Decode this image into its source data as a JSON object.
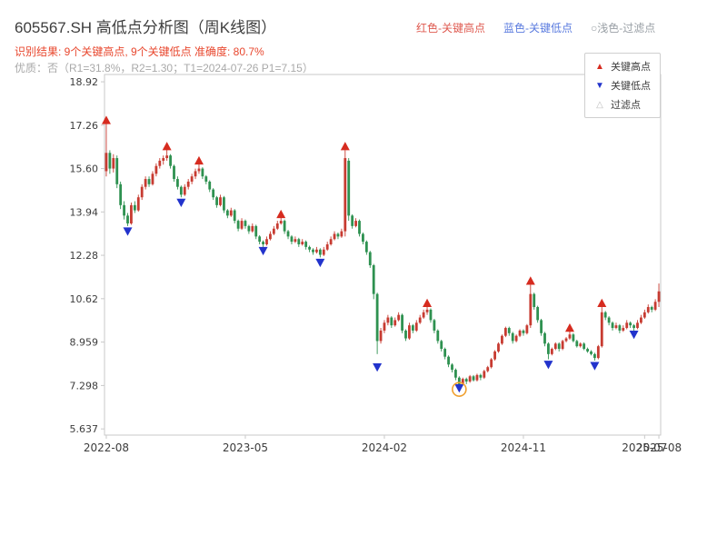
{
  "header": {
    "title": "605567.SH 高低点分析图（周K线图）",
    "legend_top": [
      {
        "label": "红色-关键高点",
        "color": "#df5a50"
      },
      {
        "label": "蓝色-关键低点",
        "color": "#5a7bdf"
      },
      {
        "label": "○浅色-过滤点",
        "color": "#9aa0a6"
      }
    ],
    "result_line": "识别结果: 9个关键高点, 9个关键低点  准确度: 80.7%",
    "result_color": "#e8472e",
    "quality_line": "优质：否（R1=31.8%，R2=1.30；T1=2024-07-26 P1=7.15）"
  },
  "chart_legend": {
    "items": [
      {
        "symbol": "▲",
        "label": "关键高点",
        "color": "#d62b1f"
      },
      {
        "symbol": "▼",
        "label": "关键低点",
        "color": "#2233cc"
      },
      {
        "symbol": "△",
        "label": "过滤点",
        "color": "#bdbdbd"
      }
    ]
  },
  "chart_data": {
    "type": "candlestick",
    "ticker": "605567.SH",
    "period": "weekly",
    "title": "605567.SH 高低点分析图（周K线图）",
    "ylim": [
      5.4,
      19.2
    ],
    "y_ticks": [
      {
        "value": 18.92,
        "label": "18.92"
      },
      {
        "value": 17.26,
        "label": "17.26"
      },
      {
        "value": 15.6,
        "label": "15.60"
      },
      {
        "value": 13.94,
        "label": "13.94"
      },
      {
        "value": 12.28,
        "label": "12.28"
      },
      {
        "value": 10.62,
        "label": "10.62"
      },
      {
        "value": 8.959,
        "label": "8.959"
      },
      {
        "value": 7.298,
        "label": "7.298"
      },
      {
        "value": 5.637,
        "label": "5.637"
      }
    ],
    "x_ticks": [
      {
        "week": 0,
        "label": "2022-08"
      },
      {
        "week": 39,
        "label": "2023-05"
      },
      {
        "week": 78,
        "label": "2024-02"
      },
      {
        "week": 117,
        "label": "2024-11"
      },
      {
        "week": 151,
        "label": "2025-07"
      },
      {
        "week": 155,
        "label": "2025-08"
      }
    ],
    "candles": [
      [
        15.5,
        17.45,
        15.3,
        16.2
      ],
      [
        16.2,
        16.3,
        15.4,
        15.6
      ],
      [
        15.6,
        16.15,
        15.45,
        16.0
      ],
      [
        16.0,
        16.1,
        14.85,
        15.0
      ],
      [
        15.0,
        15.1,
        14.05,
        14.2
      ],
      [
        14.2,
        14.35,
        13.65,
        13.8
      ],
      [
        13.8,
        13.9,
        13.4,
        13.5
      ],
      [
        13.5,
        14.3,
        13.45,
        14.2
      ],
      [
        14.2,
        14.35,
        13.9,
        14.0
      ],
      [
        14.0,
        14.6,
        13.95,
        14.5
      ],
      [
        14.5,
        15.0,
        14.4,
        14.9
      ],
      [
        14.9,
        15.3,
        14.8,
        15.2
      ],
      [
        15.2,
        15.3,
        14.9,
        15.0
      ],
      [
        15.0,
        15.5,
        14.95,
        15.4
      ],
      [
        15.4,
        15.8,
        15.3,
        15.7
      ],
      [
        15.7,
        16.0,
        15.6,
        15.9
      ],
      [
        15.9,
        16.1,
        15.75,
        16.0
      ],
      [
        16.0,
        16.35,
        15.9,
        16.1
      ],
      [
        16.1,
        16.15,
        15.6,
        15.7
      ],
      [
        15.7,
        15.75,
        15.1,
        15.2
      ],
      [
        15.2,
        15.3,
        14.8,
        14.9
      ],
      [
        14.9,
        14.95,
        14.5,
        14.6
      ],
      [
        14.6,
        15.0,
        14.55,
        14.9
      ],
      [
        14.9,
        15.2,
        14.8,
        15.1
      ],
      [
        15.1,
        15.4,
        15.0,
        15.3
      ],
      [
        15.3,
        15.6,
        15.2,
        15.5
      ],
      [
        15.5,
        15.8,
        15.4,
        15.6
      ],
      [
        15.6,
        15.65,
        15.2,
        15.3
      ],
      [
        15.3,
        15.35,
        15.0,
        15.1
      ],
      [
        15.1,
        15.15,
        14.7,
        14.8
      ],
      [
        14.8,
        14.85,
        14.4,
        14.5
      ],
      [
        14.5,
        14.55,
        14.1,
        14.2
      ],
      [
        14.2,
        14.6,
        14.15,
        14.5
      ],
      [
        14.5,
        14.55,
        13.9,
        14.0
      ],
      [
        14.0,
        14.05,
        13.7,
        13.8
      ],
      [
        13.8,
        14.1,
        13.75,
        14.0
      ],
      [
        14.0,
        14.05,
        13.5,
        13.6
      ],
      [
        13.6,
        13.65,
        13.2,
        13.3
      ],
      [
        13.3,
        13.7,
        13.25,
        13.6
      ],
      [
        13.6,
        13.65,
        13.3,
        13.4
      ],
      [
        13.4,
        13.45,
        13.1,
        13.2
      ],
      [
        13.2,
        13.5,
        13.15,
        13.4
      ],
      [
        13.4,
        13.45,
        12.9,
        13.0
      ],
      [
        13.0,
        13.05,
        12.7,
        12.8
      ],
      [
        12.8,
        12.85,
        12.6,
        12.7
      ],
      [
        12.7,
        13.0,
        12.65,
        12.9
      ],
      [
        12.9,
        13.2,
        12.85,
        13.1
      ],
      [
        13.1,
        13.4,
        13.05,
        13.3
      ],
      [
        13.3,
        13.6,
        13.25,
        13.5
      ],
      [
        13.5,
        13.75,
        13.45,
        13.6
      ],
      [
        13.6,
        13.65,
        13.1,
        13.2
      ],
      [
        13.2,
        13.25,
        12.9,
        13.0
      ],
      [
        13.0,
        13.05,
        12.7,
        12.8
      ],
      [
        12.8,
        13.0,
        12.75,
        12.9
      ],
      [
        12.9,
        12.95,
        12.6,
        12.7
      ],
      [
        12.7,
        12.9,
        12.65,
        12.8
      ],
      [
        12.8,
        12.85,
        12.5,
        12.6
      ],
      [
        12.6,
        12.65,
        12.4,
        12.5
      ],
      [
        12.5,
        12.55,
        12.3,
        12.4
      ],
      [
        12.4,
        12.6,
        12.35,
        12.5
      ],
      [
        12.5,
        12.55,
        12.2,
        12.3
      ],
      [
        12.3,
        12.6,
        12.25,
        12.5
      ],
      [
        12.5,
        12.8,
        12.45,
        12.7
      ],
      [
        12.7,
        13.0,
        12.65,
        12.9
      ],
      [
        12.9,
        13.2,
        12.85,
        13.1
      ],
      [
        13.1,
        13.15,
        12.9,
        13.0
      ],
      [
        13.0,
        13.3,
        12.95,
        13.2
      ],
      [
        13.2,
        16.3,
        13.0,
        16.0
      ],
      [
        15.9,
        16.0,
        13.6,
        13.8
      ],
      [
        13.8,
        13.85,
        13.3,
        13.4
      ],
      [
        13.4,
        13.7,
        13.35,
        13.6
      ],
      [
        13.6,
        13.65,
        13.0,
        13.1
      ],
      [
        13.1,
        13.15,
        12.7,
        12.8
      ],
      [
        12.8,
        12.85,
        12.3,
        12.4
      ],
      [
        12.4,
        12.45,
        11.8,
        11.9
      ],
      [
        11.9,
        11.95,
        10.6,
        10.8
      ],
      [
        10.8,
        10.85,
        8.5,
        9.0
      ],
      [
        9.0,
        9.5,
        8.9,
        9.4
      ],
      [
        9.4,
        9.8,
        9.3,
        9.7
      ],
      [
        9.7,
        10.0,
        9.6,
        9.9
      ],
      [
        9.9,
        9.95,
        9.5,
        9.6
      ],
      [
        9.6,
        9.9,
        9.55,
        9.8
      ],
      [
        9.8,
        10.1,
        9.75,
        10.0
      ],
      [
        10.0,
        10.05,
        9.3,
        9.4
      ],
      [
        9.4,
        9.45,
        9.0,
        9.1
      ],
      [
        9.1,
        9.7,
        9.05,
        9.6
      ],
      [
        9.6,
        9.65,
        9.3,
        9.4
      ],
      [
        9.4,
        9.8,
        9.35,
        9.7
      ],
      [
        9.7,
        10.0,
        9.65,
        9.9
      ],
      [
        9.9,
        10.2,
        9.85,
        10.1
      ],
      [
        10.1,
        10.35,
        10.0,
        10.2
      ],
      [
        10.2,
        10.25,
        9.7,
        9.8
      ],
      [
        9.8,
        9.85,
        9.3,
        9.4
      ],
      [
        9.4,
        9.45,
        8.9,
        9.0
      ],
      [
        9.0,
        9.05,
        8.6,
        8.7
      ],
      [
        8.7,
        8.75,
        8.3,
        8.4
      ],
      [
        8.4,
        8.45,
        8.0,
        8.1
      ],
      [
        8.1,
        8.15,
        7.8,
        7.9
      ],
      [
        7.9,
        7.95,
        7.5,
        7.6
      ],
      [
        7.6,
        7.65,
        7.15,
        7.35
      ],
      [
        7.35,
        7.6,
        7.3,
        7.55
      ],
      [
        7.55,
        7.6,
        7.35,
        7.45
      ],
      [
        7.45,
        7.7,
        7.4,
        7.65
      ],
      [
        7.65,
        7.7,
        7.45,
        7.5
      ],
      [
        7.5,
        7.75,
        7.45,
        7.7
      ],
      [
        7.7,
        7.75,
        7.5,
        7.6
      ],
      [
        7.6,
        7.9,
        7.55,
        7.85
      ],
      [
        7.85,
        8.05,
        7.8,
        8.0
      ],
      [
        8.0,
        8.35,
        7.95,
        8.3
      ],
      [
        8.3,
        8.65,
        8.25,
        8.6
      ],
      [
        8.6,
        8.95,
        8.55,
        8.9
      ],
      [
        8.9,
        9.25,
        8.85,
        9.2
      ],
      [
        9.2,
        9.55,
        9.15,
        9.5
      ],
      [
        9.5,
        9.55,
        9.2,
        9.3
      ],
      [
        9.3,
        9.35,
        8.9,
        9.0
      ],
      [
        9.0,
        9.25,
        8.95,
        9.2
      ],
      [
        9.2,
        9.45,
        9.15,
        9.4
      ],
      [
        9.4,
        9.45,
        9.2,
        9.3
      ],
      [
        9.3,
        9.65,
        9.25,
        9.6
      ],
      [
        9.6,
        11.15,
        9.5,
        10.8
      ],
      [
        10.8,
        10.85,
        10.2,
        10.3
      ],
      [
        10.3,
        10.35,
        9.7,
        9.8
      ],
      [
        9.8,
        9.85,
        9.2,
        9.3
      ],
      [
        9.3,
        9.35,
        8.8,
        8.9
      ],
      [
        8.9,
        8.95,
        8.3,
        8.5
      ],
      [
        8.5,
        8.75,
        8.45,
        8.7
      ],
      [
        8.7,
        8.95,
        8.65,
        8.9
      ],
      [
        8.9,
        8.95,
        8.6,
        8.7
      ],
      [
        8.7,
        9.05,
        8.65,
        9.0
      ],
      [
        9.0,
        9.15,
        8.95,
        9.1
      ],
      [
        9.1,
        9.4,
        9.05,
        9.25
      ],
      [
        9.25,
        9.3,
        8.95,
        9.0
      ],
      [
        9.0,
        9.05,
        8.75,
        8.8
      ],
      [
        8.8,
        8.95,
        8.75,
        8.9
      ],
      [
        8.9,
        8.95,
        8.65,
        8.7
      ],
      [
        8.7,
        8.75,
        8.55,
        8.6
      ],
      [
        8.6,
        8.65,
        8.45,
        8.5
      ],
      [
        8.5,
        8.55,
        8.25,
        8.35
      ],
      [
        8.35,
        8.85,
        8.3,
        8.8
      ],
      [
        8.8,
        10.3,
        8.75,
        10.1
      ],
      [
        10.1,
        10.15,
        9.8,
        9.9
      ],
      [
        9.9,
        9.95,
        9.6,
        9.7
      ],
      [
        9.7,
        9.75,
        9.4,
        9.5
      ],
      [
        9.5,
        9.7,
        9.45,
        9.6
      ],
      [
        9.6,
        9.65,
        9.3,
        9.4
      ],
      [
        9.4,
        9.6,
        9.35,
        9.5
      ],
      [
        9.5,
        9.8,
        9.45,
        9.7
      ],
      [
        9.7,
        9.75,
        9.5,
        9.6
      ],
      [
        9.6,
        9.65,
        9.4,
        9.5
      ],
      [
        9.5,
        9.8,
        9.45,
        9.7
      ],
      [
        9.7,
        10.0,
        9.65,
        9.9
      ],
      [
        9.9,
        10.2,
        9.85,
        10.1
      ],
      [
        10.1,
        10.4,
        10.05,
        10.3
      ],
      [
        10.3,
        10.35,
        10.1,
        10.2
      ],
      [
        10.2,
        10.6,
        10.15,
        10.5
      ],
      [
        10.5,
        11.2,
        10.3,
        10.9
      ]
    ],
    "key_highs": [
      [
        0,
        17.45
      ],
      [
        17,
        16.45
      ],
      [
        26,
        15.9
      ],
      [
        49,
        13.85
      ],
      [
        67,
        16.45
      ],
      [
        90,
        10.45
      ],
      [
        119,
        11.3
      ],
      [
        130,
        9.5
      ],
      [
        139,
        10.45
      ]
    ],
    "key_lows": [
      [
        6,
        13.2
      ],
      [
        21,
        14.3
      ],
      [
        44,
        12.45
      ],
      [
        60,
        12.0
      ],
      [
        76,
        8.0
      ],
      [
        99,
        7.2
      ],
      [
        124,
        8.1
      ],
      [
        137,
        8.05
      ],
      [
        148,
        9.25
      ]
    ],
    "filter_points": [
      [
        99,
        7.15
      ]
    ],
    "colors": {
      "up": "#c73b31",
      "down": "#2e9150",
      "key_high": "#d62b1f",
      "key_low": "#2233cc",
      "filter": "#f0a030",
      "axis": "#c9c9c9",
      "tick_text": "#3c3c3c"
    }
  }
}
